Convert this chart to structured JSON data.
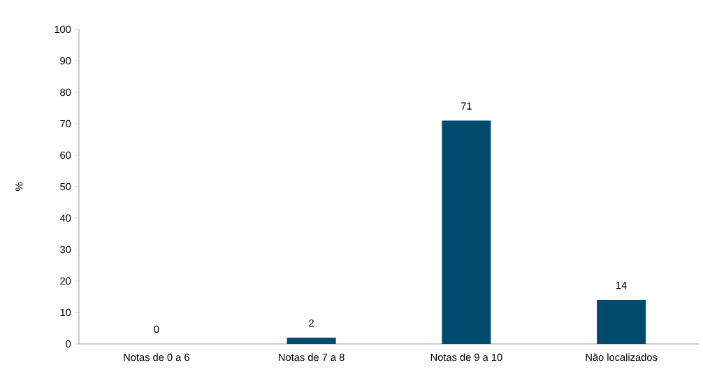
{
  "chart_data": {
    "type": "bar",
    "ylabel": "%",
    "categories": [
      "Notas de 0 a 6",
      "Notas de 7 a 8",
      "Notas de 9 a 10",
      "Não localizados"
    ],
    "values": [
      0,
      2,
      71,
      14
    ],
    "color": "#004a6e",
    "ylim": [
      0,
      100
    ],
    "yticks": [
      0,
      10,
      20,
      30,
      40,
      50,
      60,
      70,
      80,
      90,
      100
    ],
    "grid": false,
    "data_labels": true
  }
}
